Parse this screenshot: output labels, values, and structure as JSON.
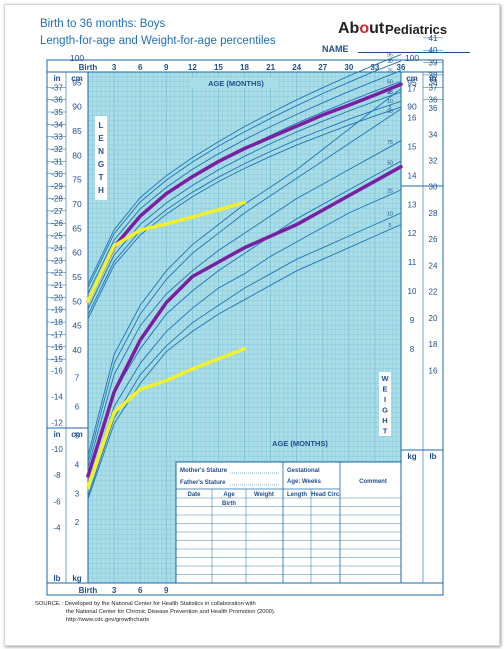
{
  "header": {
    "title_line1": "Birth to 36 months: Boys",
    "title_line2": "Length-for-age and Weight-for-age percentiles",
    "brand_about_prefix": "Ab",
    "brand_about_suffix": "ut",
    "brand_sub": "Pediatrics",
    "name_label": "NAME"
  },
  "source": {
    "line1": "SOURCE : Developed by the National Center for Health Statistics in collaboration with",
    "line2": "the National Center for Chronic Disease Prevention and Health Promotion (2000).",
    "line3": "http://www.cdc.gov/growthcharts"
  },
  "table": {
    "mothers_stature": "Mother's Stature",
    "fathers_stature": "Father's Stature",
    "gestational": "Gestational",
    "age_weeks": "Age:          Weeks",
    "comment": "Comment",
    "headers": [
      "Date",
      "Age",
      "Weight",
      "Length",
      "Head Circ."
    ],
    "first_row_age": "Birth"
  },
  "colors": {
    "grid_bg": "#a9dde8",
    "grid_line": "#7cc0d2",
    "percentile_line": "#1b75b5",
    "child_top": "#7a1fa2",
    "child_yellow": "#f2ef2b",
    "dark_blue": "#1f4e8c",
    "border_blue": "#1b6aa8"
  },
  "chart_data": {
    "type": "line",
    "title": "Length-for-age and Weight-for-age percentiles",
    "age_axis": {
      "label": "AGE (MONTHS)",
      "ticks": [
        "Birth",
        "3",
        "6",
        "9",
        "12",
        "15",
        "18",
        "21",
        "24",
        "27",
        "30",
        "33",
        "36"
      ],
      "range": [
        0,
        36
      ]
    },
    "length": {
      "label": "LENGTH",
      "cm_range": [
        37,
        105
      ],
      "cm_ticks": [
        40,
        45,
        50,
        55,
        60,
        65,
        70,
        75,
        80,
        85,
        90,
        95,
        100
      ],
      "in_ticks": [
        15,
        16,
        17,
        18,
        19,
        20,
        21,
        22,
        23,
        24,
        25,
        26,
        27,
        28,
        29,
        30,
        31,
        32,
        33,
        34,
        35,
        36,
        37,
        38,
        39,
        40,
        41
      ],
      "right_cm_ticks": [
        90,
        95,
        100
      ],
      "right_in_ticks": [
        36,
        37,
        38,
        39,
        40,
        41
      ],
      "percentiles": [
        {
          "p": "95",
          "values": [
            53.5,
            64.7,
            71.3,
            75.8,
            79.5,
            82.8,
            85.9,
            88.7,
            91.4,
            93.9,
            96.3,
            98.6,
            100.7
          ]
        },
        {
          "p": "90",
          "values": [
            52.8,
            63.9,
            70.4,
            74.9,
            78.6,
            81.9,
            84.8,
            87.6,
            90.2,
            92.7,
            95.0,
            97.3,
            99.4
          ]
        },
        {
          "p": "75",
          "values": [
            51.6,
            62.6,
            69.0,
            73.4,
            77.1,
            80.3,
            83.2,
            85.9,
            88.4,
            90.8,
            93.1,
            95.3,
            97.4
          ]
        },
        {
          "p": "50",
          "values": [
            50.0,
            61.1,
            67.4,
            71.8,
            75.5,
            78.7,
            81.5,
            84.1,
            86.6,
            88.9,
            91.1,
            93.2,
            95.2
          ]
        },
        {
          "p": "25",
          "values": [
            48.4,
            59.5,
            65.8,
            70.2,
            73.8,
            77.0,
            79.8,
            82.4,
            84.8,
            87.0,
            89.1,
            91.1,
            93.0
          ]
        },
        {
          "p": "10",
          "values": [
            47.2,
            58.2,
            64.5,
            68.8,
            72.4,
            75.5,
            78.3,
            80.8,
            83.2,
            85.3,
            87.4,
            89.3,
            91.1
          ]
        },
        {
          "p": "5",
          "values": [
            46.4,
            57.4,
            63.6,
            67.9,
            71.5,
            74.6,
            77.3,
            79.8,
            82.1,
            84.2,
            86.2,
            88.1,
            89.9
          ]
        }
      ],
      "child_purple": {
        "x": [
          0,
          3,
          6,
          9,
          12,
          15,
          18,
          21,
          24,
          27,
          30,
          33,
          36
        ],
        "values": [
          50,
          61.2,
          67.5,
          72.1,
          75.6,
          78.7,
          81.4,
          83.7,
          86.0,
          88.3,
          90.3,
          92.4,
          94.6
        ]
      },
      "child_yellow": {
        "x": [
          0,
          3,
          6,
          9,
          12,
          15,
          18
        ],
        "values": [
          50,
          61.4,
          64.6,
          65.9,
          67.3,
          68.8,
          70.3
        ]
      }
    },
    "weight": {
      "label": "WEIGHT",
      "kg_range": [
        1.5,
        18.5
      ],
      "kg_ticks_left": [
        2,
        3,
        4,
        5,
        6,
        7
      ],
      "lb_ticks_left": [
        4,
        6,
        8,
        10,
        12,
        14,
        16
      ],
      "kg_ticks_right": [
        8,
        9,
        10,
        11,
        12,
        13,
        14,
        15,
        16,
        17
      ],
      "lb_ticks_right": [
        16,
        18,
        20,
        22,
        24,
        26,
        28,
        30,
        32,
        34,
        36,
        38
      ],
      "percentiles": [
        {
          "p": "95",
          "values": [
            4.3,
            7.8,
            9.5,
            10.7,
            11.6,
            12.3,
            13.0,
            13.6,
            14.2,
            14.9,
            15.6,
            16.3,
            17.0
          ]
        },
        {
          "p": "90",
          "values": [
            4.1,
            7.5,
            9.2,
            10.4,
            11.3,
            12.0,
            12.7,
            13.3,
            13.9,
            14.5,
            15.1,
            15.7,
            16.3
          ]
        },
        {
          "p": "75",
          "values": [
            3.9,
            7.1,
            8.8,
            9.9,
            10.7,
            11.4,
            12.0,
            12.6,
            13.2,
            13.7,
            14.2,
            14.7,
            15.2
          ]
        },
        {
          "p": "50",
          "values": [
            3.5,
            6.5,
            8.0,
            9.2,
            10.0,
            10.7,
            11.3,
            11.9,
            12.5,
            13.0,
            13.5,
            14.0,
            14.5
          ]
        },
        {
          "p": "25",
          "values": [
            3.2,
            6.0,
            7.5,
            8.6,
            9.4,
            10.1,
            10.6,
            11.2,
            11.7,
            12.2,
            12.7,
            13.1,
            13.5
          ]
        },
        {
          "p": "10",
          "values": [
            2.9,
            5.6,
            7.1,
            8.1,
            8.9,
            9.5,
            10.1,
            10.6,
            11.1,
            11.5,
            11.9,
            12.3,
            12.7
          ]
        },
        {
          "p": "5",
          "values": [
            2.8,
            5.4,
            6.8,
            7.9,
            8.6,
            9.2,
            9.7,
            10.2,
            10.7,
            11.1,
            11.5,
            11.9,
            12.3
          ]
        }
      ],
      "child_purple": {
        "x": [
          0,
          3,
          6,
          9,
          12,
          15,
          18,
          21,
          24,
          27,
          30,
          33,
          36
        ],
        "values": [
          3.6,
          6.5,
          8.3,
          9.6,
          10.5,
          11.0,
          11.5,
          11.9,
          12.3,
          12.8,
          13.3,
          13.8,
          14.3
        ]
      },
      "child_yellow": {
        "x": [
          0,
          3,
          6,
          9,
          12,
          15,
          18
        ],
        "values": [
          3.2,
          5.8,
          6.6,
          6.9,
          7.3,
          7.65,
          8.0
        ]
      }
    }
  }
}
